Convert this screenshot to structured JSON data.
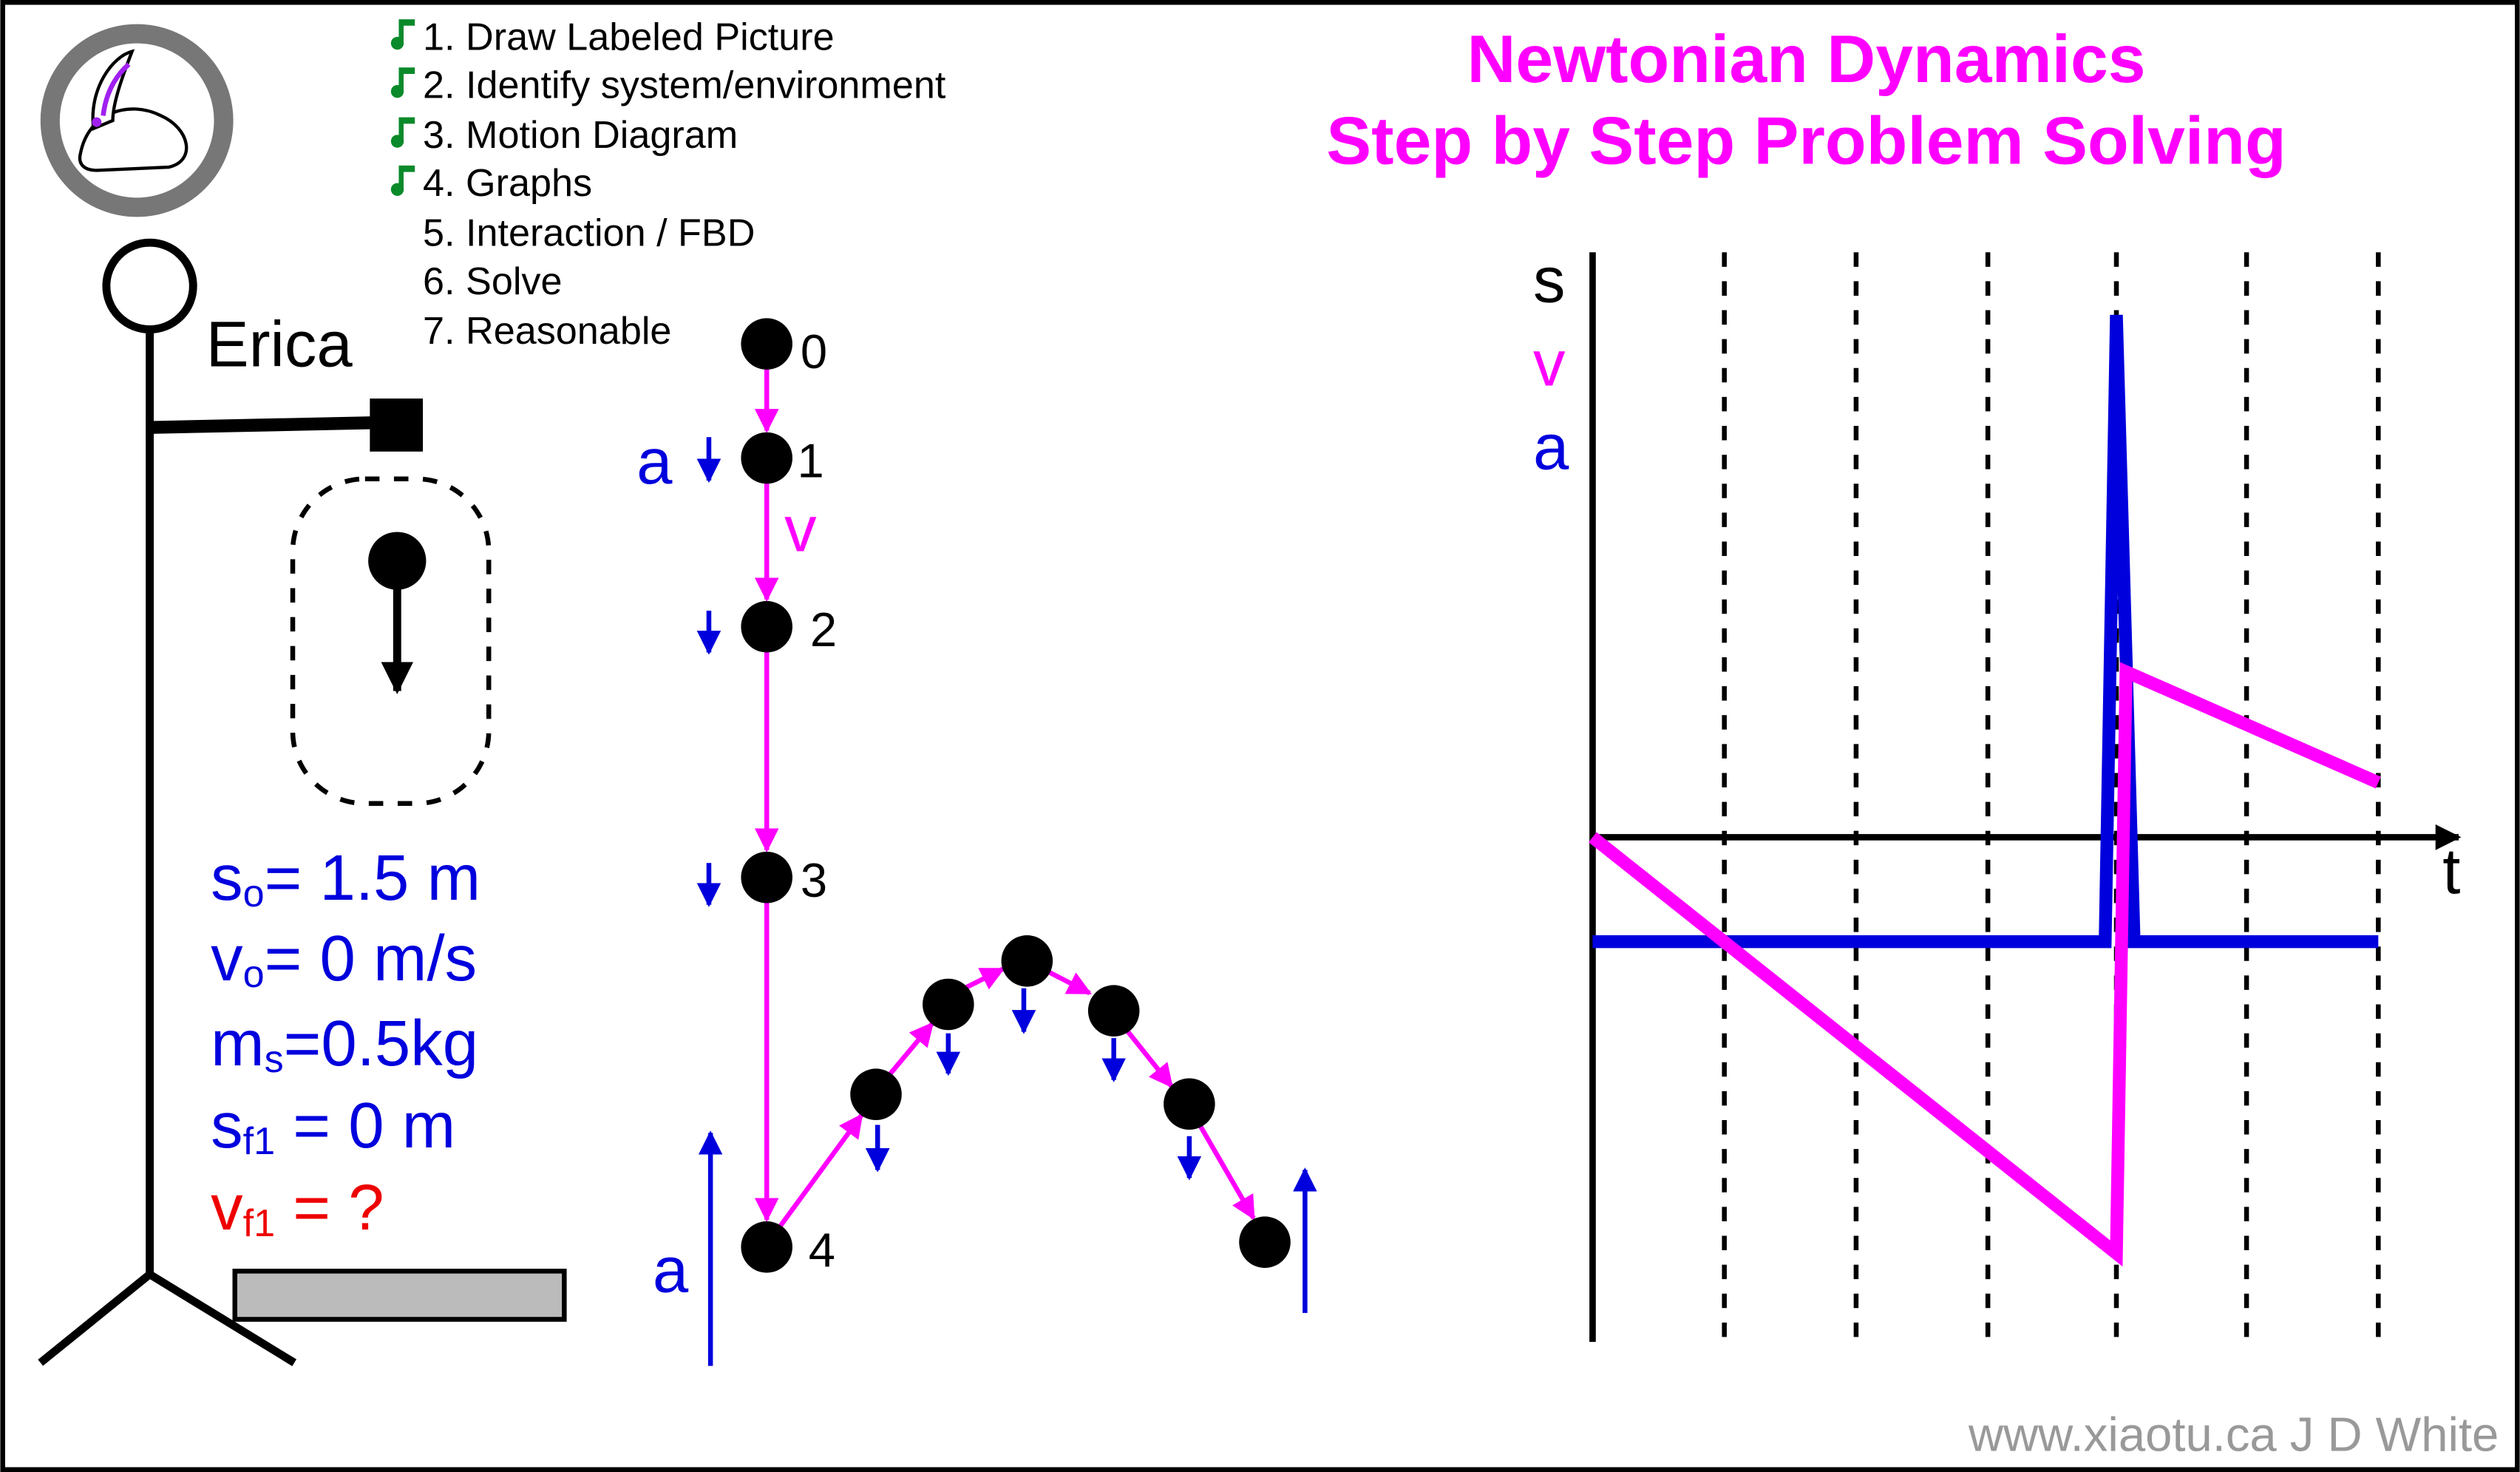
{
  "title": [
    "Newtonian Dynamics",
    "Step by Step Problem Solving"
  ],
  "steps": [
    "1. Draw Labeled Picture",
    "2. Identify system/environment",
    "3. Motion Diagram",
    "4. Graphs",
    "5. Interaction / FBD",
    "6. Solve",
    "7. Reasonable"
  ],
  "person": "Erica",
  "givens": [
    {
      "symbol": "s",
      "sub": "o",
      "rest": "= 1.5 m"
    },
    {
      "symbol": "v",
      "sub": "o",
      "rest": "= 0 m/s"
    },
    {
      "symbol": "m",
      "sub": "s",
      "rest": "=0.5kg"
    },
    {
      "symbol": "s",
      "sub": "f1",
      "rest": " = 0 m"
    },
    {
      "symbol": "v",
      "sub": "f1",
      "rest": " = ?"
    }
  ],
  "motion_diagram": {
    "points": [
      "0",
      "1",
      "2",
      "3",
      "4"
    ],
    "accel_label": "a",
    "velocity_label": "v",
    "accel_label_bottom": "a"
  },
  "graph": {
    "labels": [
      "s",
      "v",
      "a"
    ],
    "time_label": "t"
  },
  "credit": "www.xiaotu.ca J D White"
}
